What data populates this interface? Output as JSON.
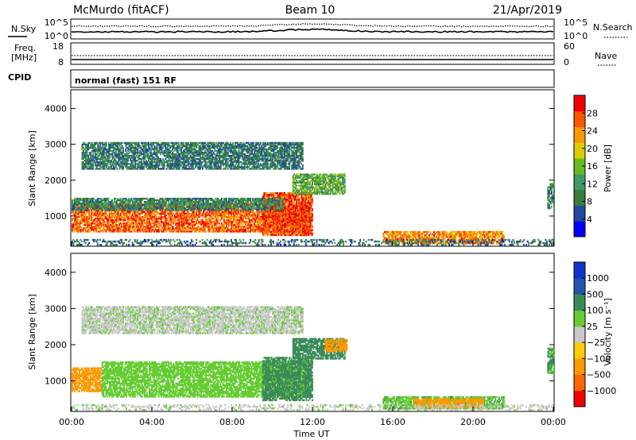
{
  "header": {
    "station": "McMurdo (fitACF)",
    "beam": "Beam 10",
    "date": "21/Apr/2019"
  },
  "noise_panel": {
    "left_label": "N.Sky",
    "right_label": "N.Search",
    "left_ticks": [
      "10^5",
      "10^0"
    ],
    "right_ticks": [
      "10^5",
      "10^0"
    ]
  },
  "freq_panel": {
    "left_label_1": "Freq.",
    "left_label_2": "[MHz]",
    "right_label": "Nave",
    "left_ticks": [
      "18",
      "8"
    ],
    "right_ticks": [
      "60",
      "0"
    ]
  },
  "cpid": {
    "label": "CPID",
    "value": "normal (fast) 151 RF"
  },
  "colors": {
    "power": [
      "#0000ff",
      "#2348a0",
      "#3a7a3a",
      "#3f9a66",
      "#66bb22",
      "#ddcc00",
      "#ff9900",
      "#ff5500",
      "#ee0000"
    ],
    "velocity": [
      "#ee0000",
      "#ff6600",
      "#ff9900",
      "#ffcc00",
      "#c8c8c8",
      "#66cc33",
      "#3a8a5a",
      "#2255aa",
      "#1133cc"
    ]
  },
  "chart_data": [
    {
      "type": "heatmap",
      "name": "power",
      "xlabel": "",
      "ylabel": "Slant Range [km]",
      "x_ticks": [
        "00:00",
        "04:00",
        "08:00",
        "12:00",
        "16:00",
        "20:00",
        "00:00"
      ],
      "y_ticks": [
        1000,
        2000,
        3000,
        4000
      ],
      "ylim": [
        180,
        4500
      ],
      "xlim_hours": [
        0,
        24
      ],
      "colorbar": {
        "label": "Power [dB]",
        "ticks": [
          4,
          8,
          12,
          16,
          20,
          24,
          28
        ],
        "range": [
          0,
          32
        ]
      },
      "echo_regions": [
        {
          "t0": 0,
          "t1": 11.9,
          "r0": 550,
          "r1": 1350,
          "value": 26
        },
        {
          "t0": 9.5,
          "t1": 12,
          "r0": 450,
          "r1": 1650,
          "value": 28
        },
        {
          "t0": 0,
          "t1": 10.5,
          "r0": 1150,
          "r1": 1500,
          "value": 10
        },
        {
          "t0": 11.0,
          "t1": 13.6,
          "r0": 1600,
          "r1": 2150,
          "value": 14
        },
        {
          "t0": 0.5,
          "t1": 11.5,
          "r0": 2300,
          "r1": 3050,
          "value": 9
        },
        {
          "t0": 15.5,
          "t1": 21.5,
          "r0": 220,
          "r1": 560,
          "value": 24
        },
        {
          "t0": 0,
          "t1": 24,
          "r0": 180,
          "r1": 320,
          "value": 8
        },
        {
          "t0": 23.7,
          "t1": 24,
          "r0": 1200,
          "r1": 1900,
          "value": 10
        }
      ]
    },
    {
      "type": "heatmap",
      "name": "velocity",
      "xlabel": "Time UT",
      "ylabel": "Slant Range [km]",
      "x_ticks": [
        "00:00",
        "04:00",
        "08:00",
        "12:00",
        "16:00",
        "20:00",
        "00:00"
      ],
      "y_ticks": [
        1000,
        2000,
        3000,
        4000
      ],
      "ylim": [
        180,
        4500
      ],
      "xlim_hours": [
        0,
        24
      ],
      "colorbar": {
        "label": "Velocity [m s⁻¹]",
        "ticks": [
          "1000",
          "500",
          "100",
          "25",
          "−25",
          "−100",
          "−500",
          "−1000"
        ],
        "levels": [
          -1000,
          -500,
          -100,
          -25,
          25,
          100,
          500,
          1000
        ]
      },
      "echo_regions": [
        {
          "t0": 0,
          "t1": 1.5,
          "r0": 700,
          "r1": 1350,
          "value": -300
        },
        {
          "t0": 1.5,
          "t1": 11.9,
          "r0": 550,
          "r1": 1500,
          "value": 60
        },
        {
          "t0": 9.5,
          "t1": 12,
          "r0": 450,
          "r1": 1650,
          "value": 150
        },
        {
          "t0": 11.0,
          "t1": 13.6,
          "r0": 1600,
          "r1": 2150,
          "value": 300
        },
        {
          "t0": 12.6,
          "t1": 13.7,
          "r0": 1800,
          "r1": 2150,
          "value": -200
        },
        {
          "t0": 0.5,
          "t1": 11.5,
          "r0": 2300,
          "r1": 3050,
          "value": 10
        },
        {
          "t0": 15.5,
          "t1": 21.5,
          "r0": 220,
          "r1": 560,
          "value": 80
        },
        {
          "t0": 17.0,
          "t1": 20.5,
          "r0": 250,
          "r1": 500,
          "value": -200
        },
        {
          "t0": 0,
          "t1": 24,
          "r0": 180,
          "r1": 320,
          "value": 5
        },
        {
          "t0": 23.7,
          "t1": 24,
          "r0": 1200,
          "r1": 1900,
          "value": 120
        }
      ]
    }
  ]
}
